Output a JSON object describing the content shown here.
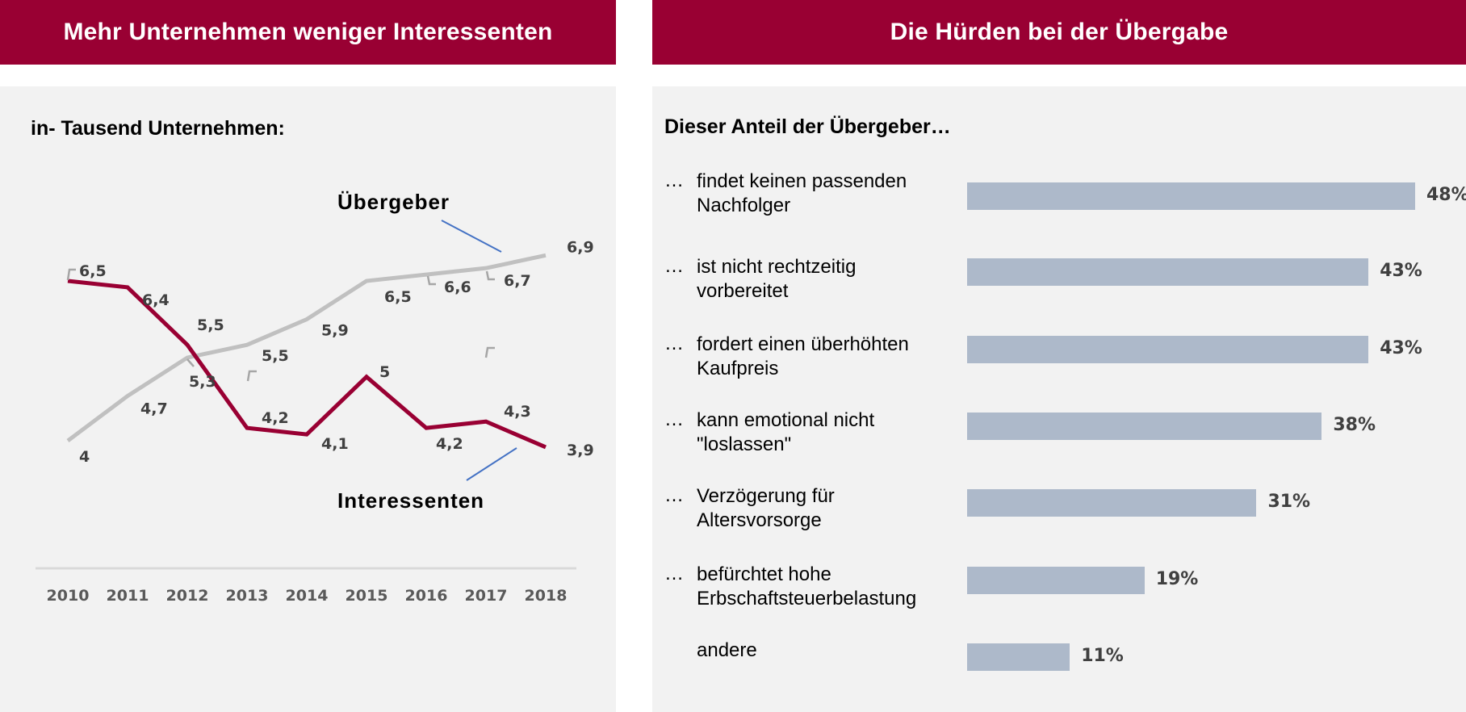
{
  "left_panel": {
    "header": "Mehr Unternehmen weniger Interessenten",
    "subtitle": "in- Tausend Unternehmen:"
  },
  "right_panel": {
    "header": "Die Hürden bei der Übergabe",
    "subtitle": "Dieser Anteil der Übergeber…"
  },
  "colors": {
    "header_bg": "#990033",
    "interessenten_line": "#990033",
    "uebergeber_line": "#c0c0c0",
    "callout_line": "#4472c4",
    "bar_fill": "#adb9ca",
    "panel_bg": "#f2f2f2"
  },
  "chart_data": [
    {
      "type": "line",
      "title": "in- Tausend Unternehmen:",
      "xlabel": "",
      "ylabel": "",
      "x": [
        "2010",
        "2011",
        "2012",
        "2013",
        "2014",
        "2015",
        "2016",
        "2017",
        "2018"
      ],
      "ylim": [
        2,
        7.5
      ],
      "grid": false,
      "legend": "inline callouts",
      "series": [
        {
          "name": "Übergeber",
          "values": [
            4.0,
            4.7,
            5.3,
            5.5,
            5.9,
            6.5,
            6.6,
            6.7,
            6.9
          ],
          "labels": [
            "4",
            "4,7",
            "5,3",
            "5,5",
            "5,9",
            "6,5",
            "6,6",
            "6,7",
            "6,9"
          ]
        },
        {
          "name": "Interessenten",
          "values": [
            6.5,
            6.4,
            5.5,
            4.2,
            4.1,
            5.0,
            4.2,
            4.3,
            3.9
          ],
          "labels": [
            "6,5",
            "6,4",
            "5,5",
            "4,2",
            "4,1",
            "5",
            "4,2",
            "4,3",
            "3,9"
          ]
        }
      ]
    },
    {
      "type": "bar",
      "orientation": "horizontal",
      "title": "Dieser Anteil der Übergeber…",
      "categories": [
        {
          "prefix": "…",
          "lines": [
            "findet keinen passenden",
            "Nachfolger"
          ]
        },
        {
          "prefix": "…",
          "lines": [
            "ist nicht rechtzeitig",
            "vorbereitet"
          ]
        },
        {
          "prefix": "…",
          "lines": [
            "fordert einen überhöhten",
            "Kaufpreis"
          ]
        },
        {
          "prefix": "…",
          "lines": [
            "kann emotional nicht",
            "\"loslassen\""
          ]
        },
        {
          "prefix": "…",
          "lines": [
            "Verzögerung für",
            "Altersvorsorge"
          ]
        },
        {
          "prefix": "…",
          "lines": [
            "befürchtet hohe",
            "Erbschaftsteuerbelastung"
          ]
        },
        {
          "prefix": "",
          "lines": [
            "andere"
          ]
        }
      ],
      "values": [
        48,
        43,
        43,
        38,
        31,
        19,
        11
      ],
      "value_labels": [
        "48%",
        "43%",
        "43%",
        "38%",
        "31%",
        "19%",
        "11%"
      ],
      "unit": "%",
      "xlim": [
        0,
        48
      ]
    }
  ]
}
